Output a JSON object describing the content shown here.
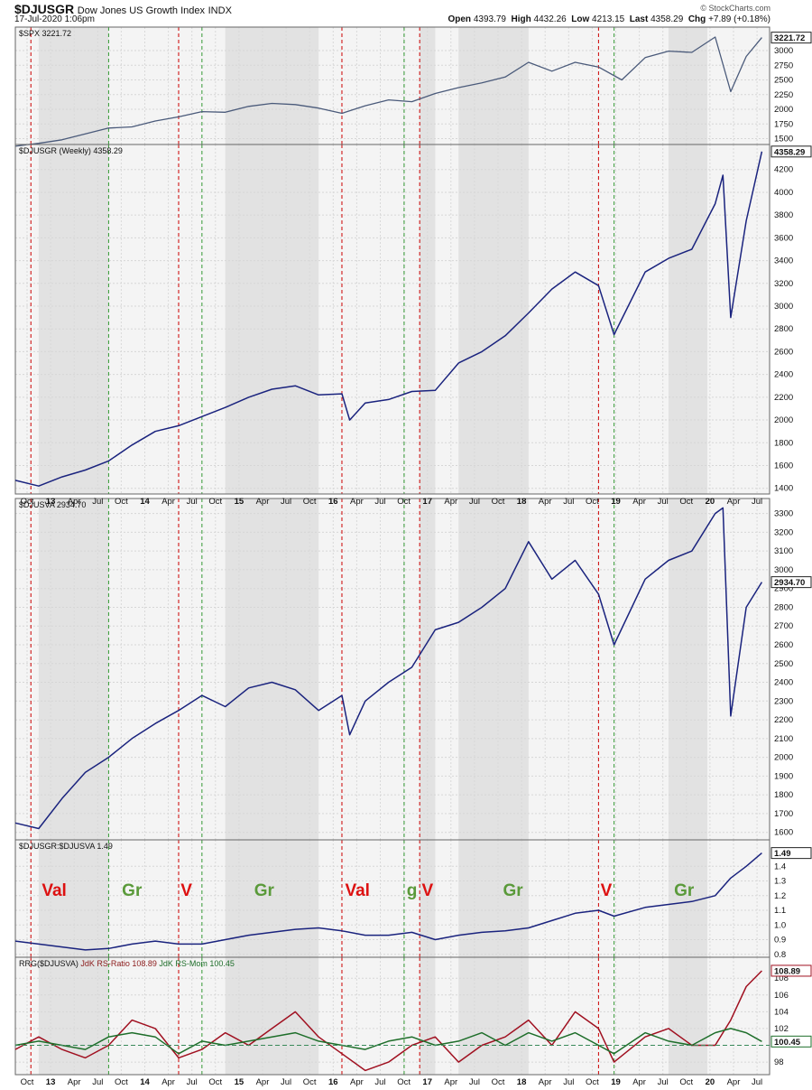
{
  "header": {
    "symbol": "$DJUSGR",
    "name": "Dow Jones US Growth Index",
    "exchange": "INDX",
    "datetime": "17-Jul-2020 1:06pm",
    "watermark": "© StockCharts.com",
    "open_label": "Open",
    "open": "4393.79",
    "high_label": "High",
    "high": "4432.26",
    "low_label": "Low",
    "low": "4213.15",
    "last_label": "Last",
    "last": "4358.29",
    "chg_label": "Chg",
    "chg": "+7.89 (+0.18%)"
  },
  "x_axis_labels": [
    "Oct",
    "13",
    "Apr",
    "Jul",
    "Oct",
    "14",
    "Apr",
    "Jul",
    "Oct",
    "15",
    "Apr",
    "Jul",
    "Oct",
    "16",
    "Apr",
    "Jul",
    "Oct",
    "17",
    "Apr",
    "Jul",
    "Oct",
    "18",
    "Apr",
    "Jul",
    "Oct",
    "19",
    "Apr",
    "Jul",
    "Oct",
    "20",
    "Apr",
    "Jul"
  ],
  "colors": {
    "red_line": "#cc0000",
    "green_line": "#339933",
    "series": "#1a237e",
    "spx": "#4a5a7a",
    "ratio": "#a01020",
    "momentum": "#1e6e2a",
    "ann_red": "#dd1111",
    "ann_green": "#5a9a3a"
  },
  "chart_data": [
    {
      "type": "line",
      "panel": "spx",
      "label": "$SPX 3221.72",
      "last_value": "3221.72",
      "yticks": [
        "3000",
        "2750",
        "2500",
        "2250",
        "2000",
        "1750",
        "1500"
      ],
      "ylim": [
        1400,
        3400
      ],
      "x": [
        "2012-07",
        "2012-10",
        "2013-01",
        "2013-04",
        "2013-07",
        "2013-10",
        "2014-01",
        "2014-04",
        "2014-07",
        "2014-10",
        "2015-01",
        "2015-04",
        "2015-07",
        "2015-10",
        "2016-01",
        "2016-04",
        "2016-07",
        "2016-10",
        "2017-01",
        "2017-04",
        "2017-07",
        "2017-10",
        "2018-01",
        "2018-04",
        "2018-07",
        "2018-10",
        "2019-01",
        "2019-04",
        "2019-07",
        "2019-10",
        "2020-01",
        "2020-03",
        "2020-05",
        "2020-07"
      ],
      "values": [
        1370,
        1420,
        1480,
        1580,
        1680,
        1700,
        1800,
        1870,
        1960,
        1950,
        2050,
        2100,
        2080,
        2020,
        1930,
        2060,
        2160,
        2130,
        2270,
        2370,
        2450,
        2550,
        2800,
        2650,
        2800,
        2720,
        2500,
        2880,
        2990,
        2970,
        3230,
        2300,
        2900,
        3221
      ]
    },
    {
      "type": "line",
      "panel": "djusgr",
      "label": "$DJUSGR (Weekly) 4358.29",
      "last_value": "4358.29",
      "yticks": [
        "4200",
        "4000",
        "3800",
        "3600",
        "3400",
        "3200",
        "3000",
        "2800",
        "2600",
        "2400",
        "2200",
        "2000",
        "1800",
        "1600",
        "1400"
      ],
      "ylim": [
        1350,
        4420
      ],
      "x": [
        "2012-07",
        "2012-10",
        "2013-01",
        "2013-04",
        "2013-07",
        "2013-10",
        "2014-01",
        "2014-04",
        "2014-07",
        "2014-10",
        "2015-01",
        "2015-04",
        "2015-07",
        "2015-10",
        "2016-01",
        "2016-02",
        "2016-04",
        "2016-07",
        "2016-10",
        "2017-01",
        "2017-04",
        "2017-07",
        "2017-10",
        "2018-01",
        "2018-04",
        "2018-07",
        "2018-10",
        "2018-12",
        "2019-04",
        "2019-07",
        "2019-10",
        "2020-01",
        "2020-02",
        "2020-03",
        "2020-05",
        "2020-07"
      ],
      "values": [
        1470,
        1420,
        1500,
        1560,
        1640,
        1780,
        1900,
        1950,
        2030,
        2110,
        2200,
        2270,
        2300,
        2220,
        2230,
        2000,
        2150,
        2180,
        2250,
        2260,
        2500,
        2600,
        2740,
        2940,
        3150,
        3300,
        3180,
        2750,
        3300,
        3420,
        3500,
        3900,
        4150,
        2900,
        3750,
        4358
      ]
    },
    {
      "type": "line",
      "panel": "djusva",
      "label": "$DJUSVA 2934.70",
      "last_value": "2934.70",
      "yticks": [
        "3300",
        "3200",
        "3100",
        "3000",
        "2900",
        "2800",
        "2700",
        "2600",
        "2500",
        "2400",
        "2300",
        "2200",
        "2100",
        "2000",
        "1900",
        "1800",
        "1700",
        "1600"
      ],
      "ylim": [
        1560,
        3380
      ],
      "x": [
        "2012-07",
        "2012-10",
        "2013-01",
        "2013-04",
        "2013-07",
        "2013-10",
        "2014-01",
        "2014-04",
        "2014-07",
        "2014-10",
        "2015-01",
        "2015-04",
        "2015-07",
        "2015-10",
        "2016-01",
        "2016-02",
        "2016-04",
        "2016-07",
        "2016-10",
        "2017-01",
        "2017-04",
        "2017-07",
        "2017-10",
        "2018-01",
        "2018-04",
        "2018-07",
        "2018-10",
        "2018-12",
        "2019-04",
        "2019-07",
        "2019-10",
        "2020-01",
        "2020-02",
        "2020-03",
        "2020-05",
        "2020-07"
      ],
      "values": [
        1650,
        1620,
        1780,
        1920,
        2000,
        2100,
        2180,
        2250,
        2330,
        2270,
        2370,
        2400,
        2360,
        2250,
        2330,
        2120,
        2300,
        2400,
        2480,
        2680,
        2720,
        2800,
        2900,
        3150,
        2950,
        3050,
        2870,
        2600,
        2950,
        3050,
        3100,
        3300,
        3330,
        2220,
        2800,
        2934
      ]
    },
    {
      "type": "line",
      "panel": "ratio",
      "label": "$DJUSGR:$DJUSVA 1.49",
      "last_value": "1.49",
      "yticks": [
        "1.4",
        "1.3",
        "1.2",
        "1.1",
        "1.0",
        "0.9",
        "0.8"
      ],
      "ylim": [
        0.78,
        1.58
      ],
      "x": [
        "2012-07",
        "2012-10",
        "2013-01",
        "2013-04",
        "2013-07",
        "2013-10",
        "2014-01",
        "2014-04",
        "2014-07",
        "2014-10",
        "2015-01",
        "2015-04",
        "2015-07",
        "2015-10",
        "2016-01",
        "2016-04",
        "2016-07",
        "2016-10",
        "2017-01",
        "2017-04",
        "2017-07",
        "2017-10",
        "2018-01",
        "2018-04",
        "2018-07",
        "2018-10",
        "2018-12",
        "2019-04",
        "2019-07",
        "2019-10",
        "2020-01",
        "2020-03",
        "2020-05",
        "2020-07"
      ],
      "values": [
        0.89,
        0.87,
        0.85,
        0.83,
        0.84,
        0.87,
        0.89,
        0.87,
        0.87,
        0.9,
        0.93,
        0.95,
        0.97,
        0.98,
        0.96,
        0.93,
        0.93,
        0.95,
        0.9,
        0.93,
        0.95,
        0.96,
        0.98,
        1.03,
        1.08,
        1.1,
        1.06,
        1.12,
        1.14,
        1.16,
        1.2,
        1.32,
        1.4,
        1.49
      ],
      "annotations": [
        {
          "text": "Val",
          "x": "2012-12",
          "color": "red"
        },
        {
          "text": "Gr",
          "x": "2013-10",
          "color": "green"
        },
        {
          "text": "V",
          "x": "2014-05",
          "color": "red"
        },
        {
          "text": "Gr",
          "x": "2015-03",
          "color": "green"
        },
        {
          "text": "Val",
          "x": "2016-03",
          "color": "red"
        },
        {
          "text": "g",
          "x": "2016-10",
          "color": "green"
        },
        {
          "text": "V",
          "x": "2016-12",
          "color": "red"
        },
        {
          "text": "Gr",
          "x": "2017-11",
          "color": "green"
        },
        {
          "text": "V",
          "x": "2018-11",
          "color": "red"
        },
        {
          "text": "Gr",
          "x": "2019-09",
          "color": "green"
        }
      ]
    },
    {
      "type": "line",
      "panel": "rrg",
      "label_a": "RRG($DJUSVA)",
      "label_b": "JdK RS-Ratio 108.89",
      "label_c": "JdK RS-Mom 100.45",
      "last_ratio": "108.89",
      "last_mom": "100.45",
      "yticks": [
        "108",
        "106",
        "104",
        "102",
        "98"
      ],
      "ylim": [
        96.5,
        110.5
      ],
      "x": [
        "2012-07",
        "2012-10",
        "2013-01",
        "2013-04",
        "2013-07",
        "2013-10",
        "2014-01",
        "2014-04",
        "2014-07",
        "2014-10",
        "2015-01",
        "2015-04",
        "2015-07",
        "2015-10",
        "2016-01",
        "2016-04",
        "2016-07",
        "2016-10",
        "2017-01",
        "2017-04",
        "2017-07",
        "2017-10",
        "2018-01",
        "2018-04",
        "2018-07",
        "2018-10",
        "2018-12",
        "2019-04",
        "2019-07",
        "2019-10",
        "2020-01",
        "2020-03",
        "2020-05",
        "2020-07"
      ],
      "series": [
        {
          "name": "JdK RS-Ratio",
          "values": [
            99.5,
            101,
            99.5,
            98.5,
            100,
            103,
            102,
            98.5,
            99.5,
            101.5,
            100,
            102,
            104,
            101,
            99,
            97,
            98,
            100,
            101,
            98,
            100,
            101,
            103,
            100,
            104,
            102,
            98,
            101,
            102,
            100,
            100,
            103,
            107,
            108.89
          ]
        },
        {
          "name": "JdK RS-Mom",
          "values": [
            100,
            100.5,
            100,
            99.5,
            101,
            101.5,
            101,
            99,
            100.5,
            100,
            100.5,
            101,
            101.5,
            100.5,
            100,
            99.5,
            100.5,
            101,
            100,
            100.5,
            101.5,
            100,
            101.5,
            100.5,
            101.5,
            100,
            99,
            101.5,
            100.5,
            100,
            101.5,
            102,
            101.5,
            100.45
          ]
        }
      ]
    }
  ],
  "vlines": {
    "red": [
      "2012-09",
      "2014-04",
      "2016-01",
      "2016-11",
      "2018-10"
    ],
    "green": [
      "2013-07",
      "2014-07",
      "2016-09",
      "2018-12"
    ]
  },
  "shade_bands": [
    [
      "2012-10",
      "2013-07"
    ],
    [
      "2014-10",
      "2015-10"
    ],
    [
      "2016-11",
      "2017-01"
    ],
    [
      "2017-04",
      "2018-01"
    ],
    [
      "2019-07",
      "2019-12"
    ]
  ]
}
